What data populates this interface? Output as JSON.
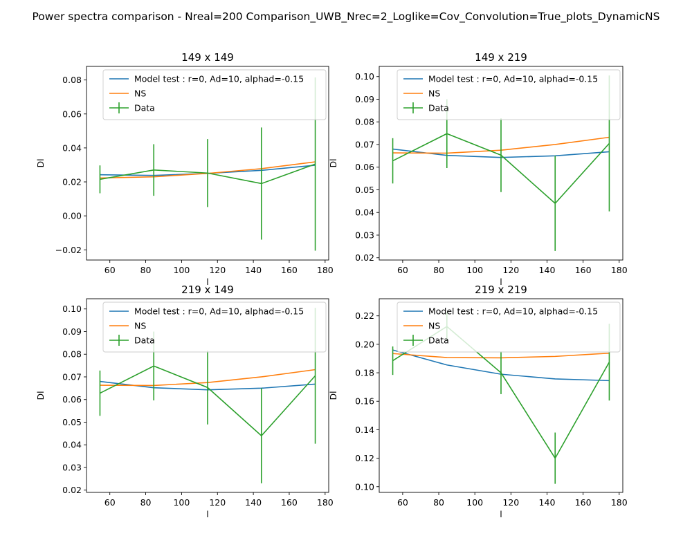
{
  "figure": {
    "suptitle": "Power spectra comparison - Nreal=200 Comparison_UWB_Nrec=2_Loglike=Cov_Convolution=True_plots_DynamicNS"
  },
  "colors": {
    "model": "#1f77b4",
    "ns": "#ff7f0e",
    "data": "#2ca02c"
  },
  "chart_data": [
    {
      "type": "line",
      "title": "149 x 149",
      "xlabel": "l",
      "ylabel": "Dl",
      "xlim": [
        47,
        182
      ],
      "ylim": [
        -0.026,
        0.088
      ],
      "xticks": [
        60,
        80,
        100,
        120,
        140,
        160,
        180
      ],
      "yticks": [
        -0.02,
        0.0,
        0.02,
        0.04,
        0.06,
        0.08
      ],
      "ytick_labels": [
        "−0.02",
        "0.00",
        "0.02",
        "0.04",
        "0.06",
        "0.08"
      ],
      "legend_position": "upper right",
      "x": [
        54.5,
        84.5,
        114.5,
        144.5,
        174.5
      ],
      "series": [
        {
          "name": "Model test : r=0, Ad=10, alphad=-0.15",
          "values": [
            0.0242,
            0.0238,
            0.025,
            0.0268,
            0.0298
          ]
        },
        {
          "name": "NS",
          "values": [
            0.0223,
            0.023,
            0.025,
            0.0278,
            0.0318
          ]
        },
        {
          "name": "Data",
          "values": [
            0.0215,
            0.027,
            0.0252,
            0.019,
            0.0305
          ],
          "errors": [
            0.0082,
            0.0152,
            0.02,
            0.033,
            0.051
          ]
        }
      ]
    },
    {
      "type": "line",
      "title": "149 x 219",
      "xlabel": "l",
      "ylabel": "Dl",
      "xlim": [
        47,
        182
      ],
      "ylim": [
        0.019,
        0.1045
      ],
      "xticks": [
        60,
        80,
        100,
        120,
        140,
        160,
        180
      ],
      "yticks": [
        0.02,
        0.03,
        0.04,
        0.05,
        0.06,
        0.07,
        0.08,
        0.09,
        0.1
      ],
      "ytick_labels": [
        "0.02",
        "0.03",
        "0.04",
        "0.05",
        "0.06",
        "0.07",
        "0.08",
        "0.09",
        "0.10"
      ],
      "legend_position": "upper right",
      "x": [
        54.5,
        84.5,
        114.5,
        144.5,
        174.5
      ],
      "series": [
        {
          "name": "Model test : r=0, Ad=10, alphad=-0.15",
          "values": [
            0.068,
            0.0652,
            0.0643,
            0.065,
            0.0668
          ]
        },
        {
          "name": "NS",
          "values": [
            0.0663,
            0.0662,
            0.0675,
            0.07,
            0.0732
          ]
        },
        {
          "name": "Data",
          "values": [
            0.0628,
            0.0748,
            0.0653,
            0.044,
            0.0705
          ],
          "errors": [
            0.01,
            0.0152,
            0.0163,
            0.021,
            0.03
          ]
        }
      ]
    },
    {
      "type": "line",
      "title": "219 x 149",
      "xlabel": "l",
      "ylabel": "Dl",
      "xlim": [
        47,
        182
      ],
      "ylim": [
        0.019,
        0.1045
      ],
      "xticks": [
        60,
        80,
        100,
        120,
        140,
        160,
        180
      ],
      "yticks": [
        0.02,
        0.03,
        0.04,
        0.05,
        0.06,
        0.07,
        0.08,
        0.09,
        0.1
      ],
      "ytick_labels": [
        "0.02",
        "0.03",
        "0.04",
        "0.05",
        "0.06",
        "0.07",
        "0.08",
        "0.09",
        "0.10"
      ],
      "legend_position": "upper right",
      "x": [
        54.5,
        84.5,
        114.5,
        144.5,
        174.5
      ],
      "series": [
        {
          "name": "Model test : r=0, Ad=10, alphad=-0.15",
          "values": [
            0.068,
            0.0652,
            0.0643,
            0.065,
            0.0668
          ]
        },
        {
          "name": "NS",
          "values": [
            0.0663,
            0.0662,
            0.0675,
            0.07,
            0.0732
          ]
        },
        {
          "name": "Data",
          "values": [
            0.0628,
            0.0748,
            0.0653,
            0.044,
            0.0705
          ],
          "errors": [
            0.01,
            0.0152,
            0.0163,
            0.021,
            0.03
          ]
        }
      ]
    },
    {
      "type": "line",
      "title": "219 x 219",
      "xlabel": "l",
      "ylabel": "Dl",
      "xlim": [
        47,
        182
      ],
      "ylim": [
        0.096,
        0.232
      ],
      "xticks": [
        60,
        80,
        100,
        120,
        140,
        160,
        180
      ],
      "yticks": [
        0.1,
        0.12,
        0.14,
        0.16,
        0.18,
        0.2,
        0.22
      ],
      "ytick_labels": [
        "0.10",
        "0.12",
        "0.14",
        "0.16",
        "0.18",
        "0.20",
        "0.22"
      ],
      "legend_position": "upper right",
      "x": [
        54.5,
        84.5,
        114.5,
        144.5,
        174.5
      ],
      "series": [
        {
          "name": "Model test : r=0, Ad=10, alphad=-0.15",
          "values": [
            0.196,
            0.1855,
            0.179,
            0.1757,
            0.1745
          ]
        },
        {
          "name": "NS",
          "values": [
            0.1935,
            0.1907,
            0.1905,
            0.1915,
            0.1938
          ]
        },
        {
          "name": "Data",
          "values": [
            0.1885,
            0.2125,
            0.18,
            0.12,
            0.1875
          ],
          "errors": [
            0.01,
            0.01,
            0.015,
            0.018,
            0.027
          ]
        }
      ]
    }
  ]
}
